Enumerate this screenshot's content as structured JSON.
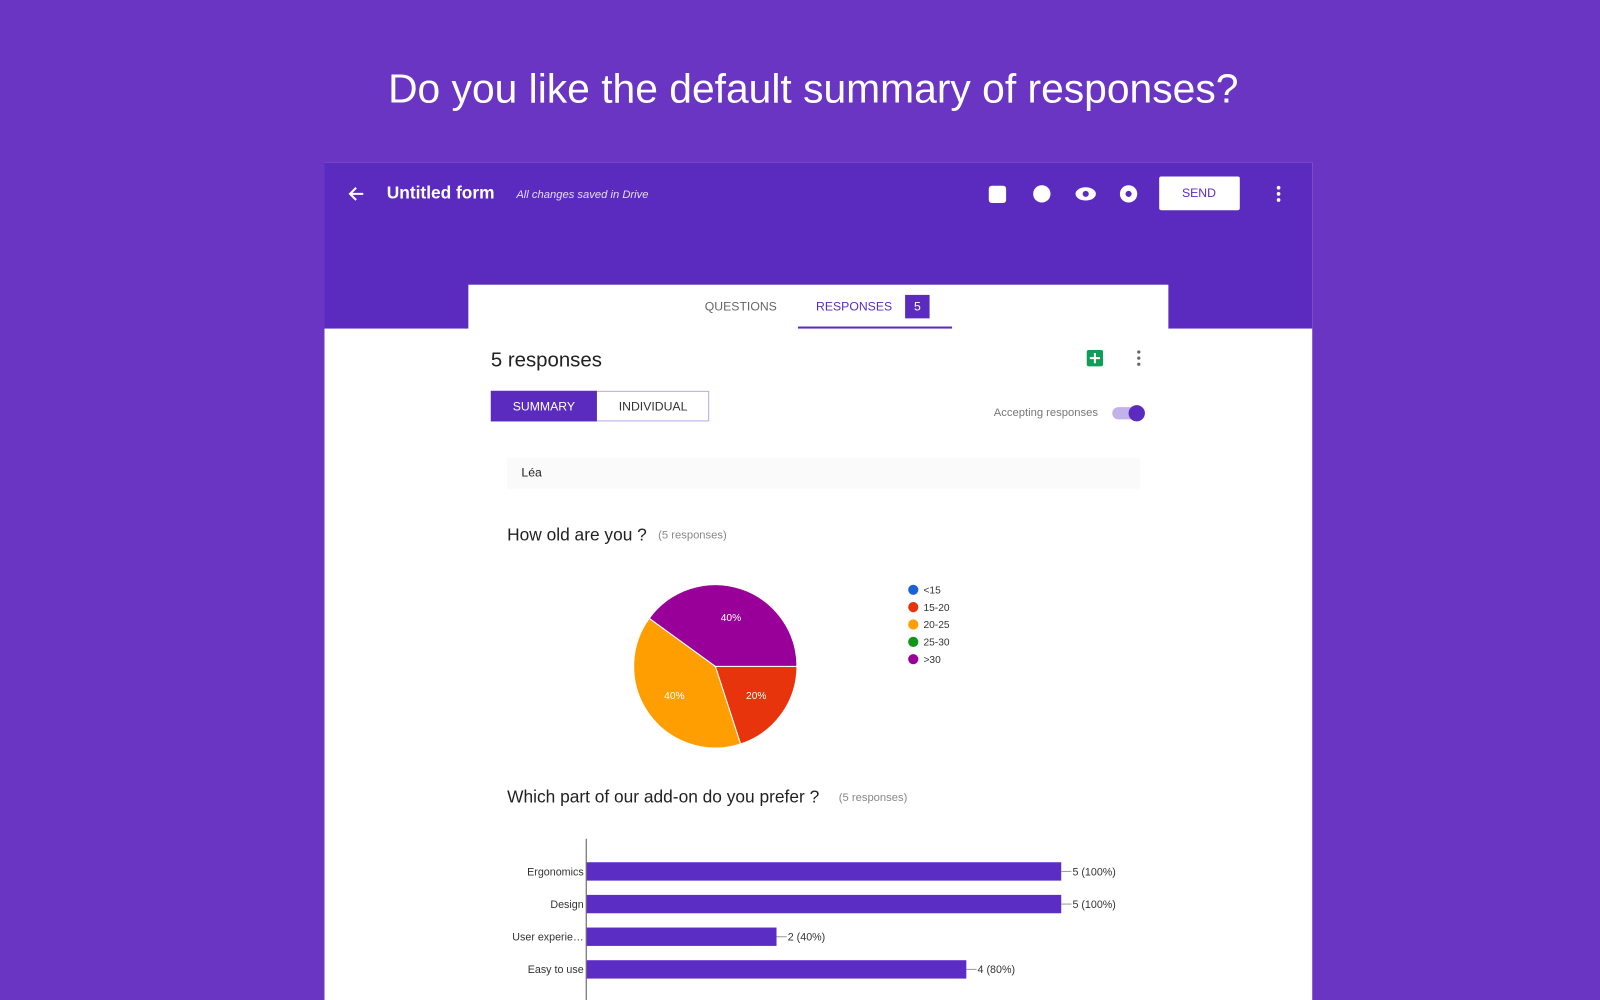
{
  "headline": "Do you like the default summary of responses?",
  "toolbar": {
    "title": "Untitled form",
    "status": "All changes saved in Drive",
    "send": "SEND"
  },
  "tabs": {
    "questions": "QUESTIONS",
    "responses": "RESPONSES",
    "count": 5
  },
  "summary": {
    "title": "5 responses",
    "views": [
      "SUMMARY",
      "INDIVIDUAL"
    ],
    "accepting": "Accepting responses",
    "respondent": "Léa"
  },
  "chart_data": [
    {
      "type": "pie",
      "title": "How old are you ?",
      "subtitle": "(5 responses)",
      "categories": [
        "<15",
        "15-20",
        "20-25",
        "25-30",
        ">30"
      ],
      "values": [
        0,
        20,
        40,
        0,
        40
      ],
      "value_labels": [
        null,
        "20%",
        "40%",
        null,
        "40%"
      ],
      "colors": [
        "#1a63d6",
        "#e8340c",
        "#ff9e00",
        "#109618",
        "#990099"
      ]
    },
    {
      "type": "bar",
      "orientation": "horizontal",
      "title": "Which part of our add-on do you prefer ?",
      "subtitle": "(5 responses)",
      "categories": [
        "Ergonomics",
        "Design",
        "User experie…",
        "Easy to use"
      ],
      "values": [
        5,
        5,
        2,
        4
      ],
      "value_labels": [
        "5 (100%)",
        "5 (100%)",
        "2 (40%)",
        "4 (80%)"
      ],
      "color": "#5c2dc4",
      "xlim": [
        0,
        5
      ]
    }
  ]
}
